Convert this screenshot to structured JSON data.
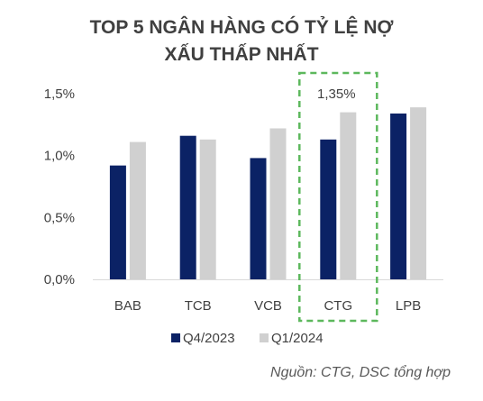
{
  "chart_data": {
    "type": "bar",
    "title_lines": [
      "TOP 5 NGÂN HÀNG CÓ TỶ LỆ NỢ",
      "XẤU THẤP NHẤT"
    ],
    "categories": [
      "BAB",
      "TCB",
      "VCB",
      "CTG",
      "LPB"
    ],
    "series": [
      {
        "name": "Q4/2023",
        "color": "#0b2265",
        "values": [
          0.92,
          1.16,
          0.98,
          1.13,
          1.34
        ]
      },
      {
        "name": "Q1/2024",
        "color": "#d0d0d0",
        "values": [
          1.11,
          1.13,
          1.22,
          1.35,
          1.39
        ]
      }
    ],
    "ylim": [
      0,
      1.5
    ],
    "yticks": [
      0,
      0.5,
      1.0,
      1.5
    ],
    "ytick_labels": [
      "0,0%",
      "0,5%",
      "1,0%",
      "1,5%"
    ],
    "gridlines": false,
    "legend_position": "bottom",
    "highlight": {
      "category": "CTG",
      "label": "1,35%",
      "border_color": "#5cb85c",
      "border_style": "dashed"
    },
    "source_note": "Nguồn: CTG, DSC tổng hợp"
  }
}
